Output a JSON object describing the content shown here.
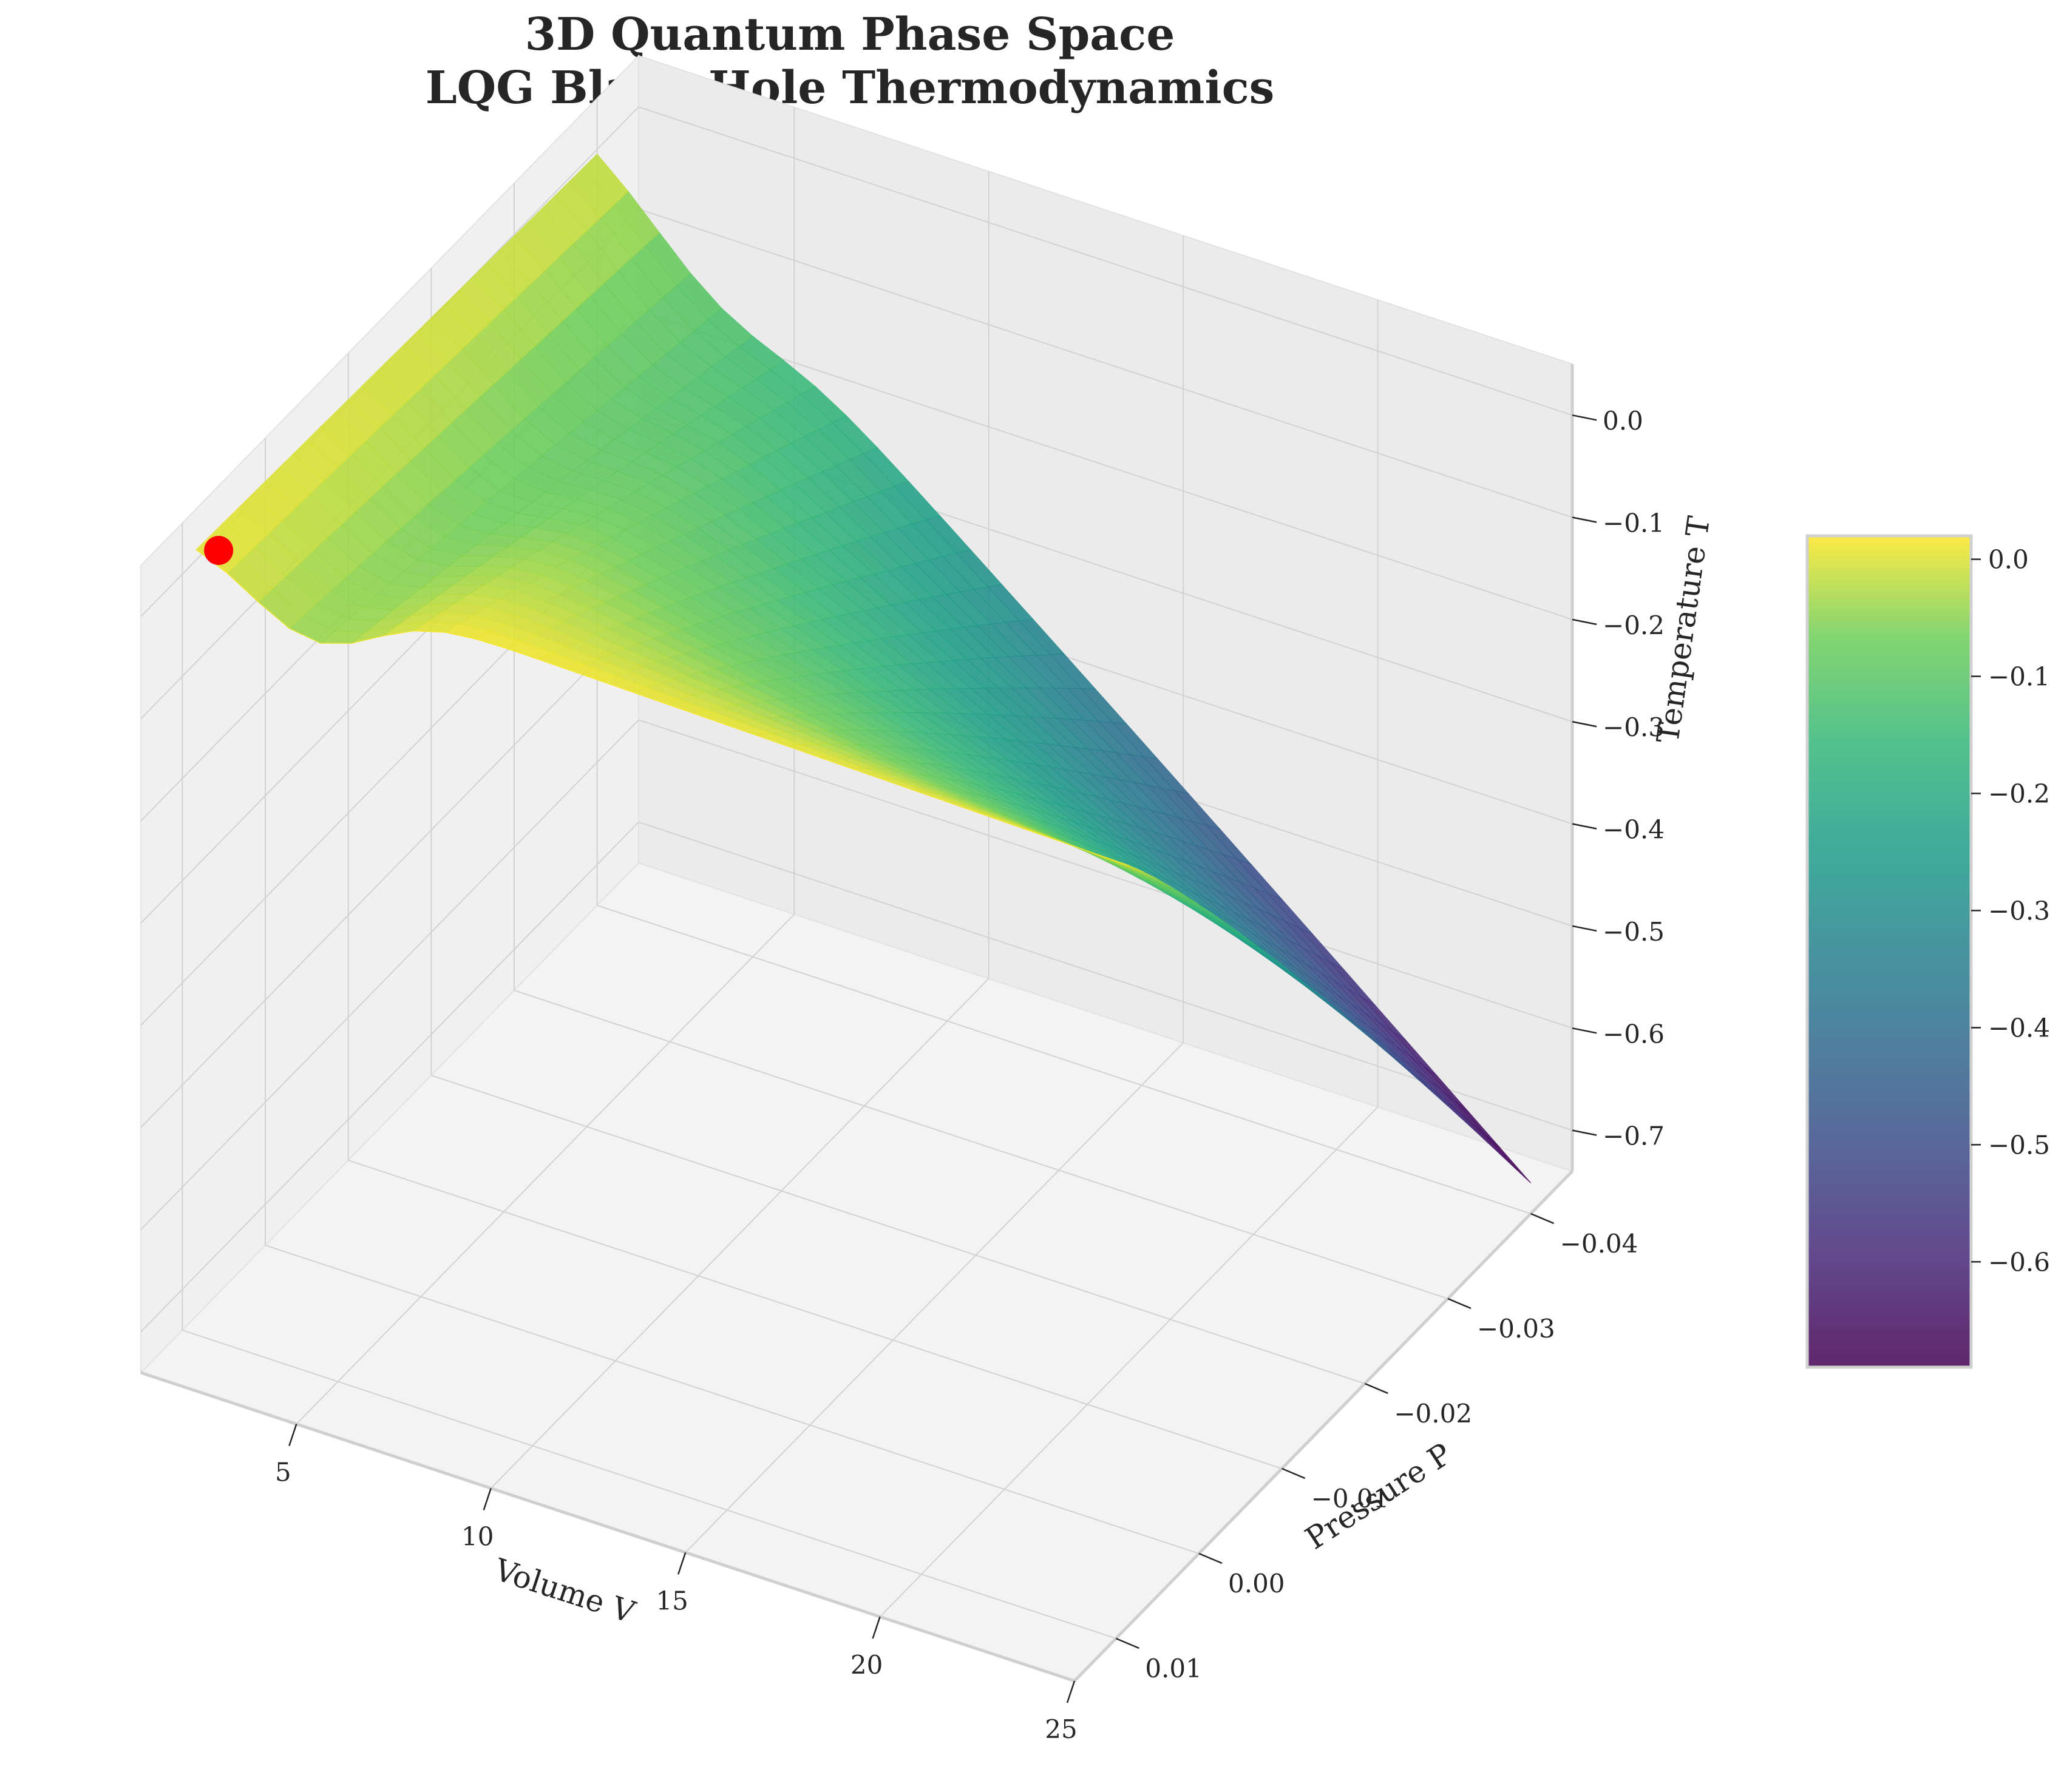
{
  "chart_data": {
    "type": "surface3d",
    "title": [
      "3D Quantum Phase Space",
      "LQG Black Hole Thermodynamics"
    ],
    "xlabel": "Volume V",
    "ylabel": "Pressure P",
    "zlabel": "Temperature T",
    "x_ticks": [
      5,
      10,
      15,
      20,
      25
    ],
    "y_ticks": [
      0.01,
      0.0,
      -0.01,
      -0.02,
      -0.03,
      -0.04
    ],
    "y_tick_labels": [
      "0.01",
      "0.00",
      "−0.01",
      "−0.02",
      "−0.03",
      "−0.04"
    ],
    "z_ticks": [
      0.0,
      -0.1,
      -0.2,
      -0.3,
      -0.4,
      -0.5,
      -0.6,
      -0.7
    ],
    "z_tick_labels": [
      "0.0",
      "−0.1",
      "−0.2",
      "−0.3",
      "−0.4",
      "−0.5",
      "−0.6",
      "−0.7"
    ],
    "xlim": [
      1,
      25
    ],
    "ylim": [
      -0.045,
      0.015
    ],
    "zlim": [
      -0.74,
      0.05
    ],
    "surface": {
      "x_range": [
        1,
        25
      ],
      "y_range": [
        -0.04,
        0.01
      ],
      "z_min": -0.69,
      "z_max": 0.02,
      "description_formula": "T rises to a ridge near 0 at high pressure and drops to about -0.69 at V=25, P=-0.04"
    },
    "critical_point": {
      "x": 3,
      "y": 0.015,
      "z": 0.09,
      "color": "#ff0000"
    },
    "colormap": "viridis",
    "colorbar": {
      "ticks": [
        0.0,
        -0.1,
        -0.2,
        -0.3,
        -0.4,
        -0.5,
        -0.6
      ],
      "tick_labels": [
        "0.0",
        "−0.1",
        "−0.2",
        "−0.3",
        "−0.4",
        "−0.5",
        "−0.6"
      ],
      "range": [
        -0.69,
        0.02
      ]
    },
    "grid": true
  }
}
